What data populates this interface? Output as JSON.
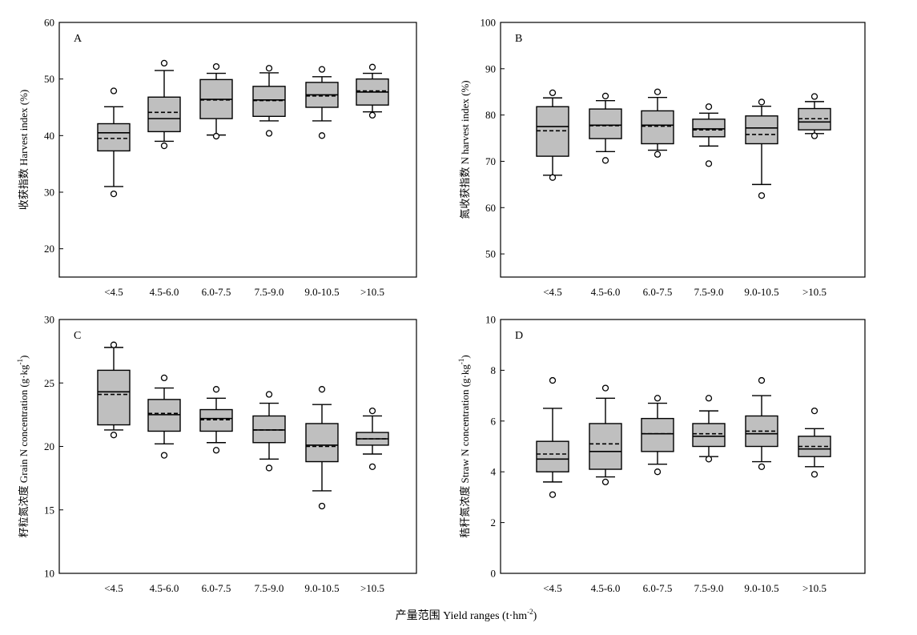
{
  "figure": {
    "x_caption": "产量范围 Yield ranges (t·hm",
    "x_caption_sup": "-2",
    "x_caption_tail": ")"
  },
  "chart_data": [
    {
      "type": "box",
      "panel": "A",
      "ylabel": "收获指数 Harvest index (%)",
      "ylim": [
        15,
        60
      ],
      "yticks": [
        20,
        30,
        40,
        50,
        60
      ],
      "categories": [
        "<4.5",
        "4.5-6.0",
        "6.0-7.5",
        "7.5-9.0",
        "9.0-10.5",
        ">10.5"
      ],
      "boxes": [
        {
          "whisker_low": 31.0,
          "q1": 37.3,
          "median": 40.5,
          "mean": 39.5,
          "q3": 42.1,
          "whisker_high": 45.1,
          "outliers": [
            29.7,
            47.9
          ]
        },
        {
          "whisker_low": 39.0,
          "q1": 40.7,
          "median": 43.0,
          "mean": 44.1,
          "q3": 46.8,
          "whisker_high": 51.5,
          "outliers": [
            38.2,
            52.8
          ]
        },
        {
          "whisker_low": 40.1,
          "q1": 43.0,
          "median": 46.4,
          "mean": 46.3,
          "q3": 49.9,
          "whisker_high": 51.0,
          "outliers": [
            39.9,
            52.2
          ]
        },
        {
          "whisker_low": 42.6,
          "q1": 43.4,
          "median": 46.3,
          "mean": 46.2,
          "q3": 48.7,
          "whisker_high": 51.1,
          "outliers": [
            40.4,
            51.9
          ]
        },
        {
          "whisker_low": 42.6,
          "q1": 45.0,
          "median": 47.2,
          "mean": 47.0,
          "q3": 49.4,
          "whisker_high": 50.4,
          "outliers": [
            40.0,
            51.7
          ]
        },
        {
          "whisker_low": 44.2,
          "q1": 45.4,
          "median": 47.7,
          "mean": 47.9,
          "q3": 50.0,
          "whisker_high": 51.0,
          "outliers": [
            43.6,
            52.1
          ]
        }
      ]
    },
    {
      "type": "box",
      "panel": "B",
      "ylabel": "氮收获指数 N harvest index (%)",
      "ylim": [
        45,
        100
      ],
      "yticks": [
        50,
        60,
        70,
        80,
        90,
        100
      ],
      "categories": [
        "<4.5",
        "4.5-6.0",
        "6.0-7.5",
        "7.5-9.0",
        "9.0-10.5",
        ">10.5"
      ],
      "boxes": [
        {
          "whisker_low": 67.0,
          "q1": 71.1,
          "median": 77.5,
          "mean": 76.6,
          "q3": 81.8,
          "whisker_high": 83.7,
          "outliers": [
            66.5,
            84.8
          ]
        },
        {
          "whisker_low": 72.1,
          "q1": 74.9,
          "median": 77.8,
          "mean": 77.7,
          "q3": 81.3,
          "whisker_high": 83.1,
          "outliers": [
            70.2,
            84.1
          ]
        },
        {
          "whisker_low": 72.4,
          "q1": 73.8,
          "median": 77.8,
          "mean": 77.6,
          "q3": 80.9,
          "whisker_high": 83.8,
          "outliers": [
            71.5,
            85.0
          ]
        },
        {
          "whisker_low": 73.3,
          "q1": 75.3,
          "median": 77.0,
          "mean": 76.8,
          "q3": 79.1,
          "whisker_high": 80.4,
          "outliers": [
            69.5,
            81.8
          ]
        },
        {
          "whisker_low": 65.0,
          "q1": 73.8,
          "median": 77.2,
          "mean": 75.8,
          "q3": 79.8,
          "whisker_high": 81.9,
          "outliers": [
            62.6,
            82.8
          ]
        },
        {
          "whisker_low": 76.0,
          "q1": 76.8,
          "median": 78.5,
          "mean": 79.2,
          "q3": 81.4,
          "whisker_high": 82.9,
          "outliers": [
            75.5,
            84.0
          ]
        }
      ]
    },
    {
      "type": "box",
      "panel": "C",
      "ylabel": "籽粒氮浓度 Grain N concentration (g·kg",
      "ylabel_sup": "-1",
      "ylabel_tail": ")",
      "ylim": [
        10,
        30
      ],
      "yticks": [
        10,
        15,
        20,
        25,
        30
      ],
      "categories": [
        "<4.5",
        "4.5-6.0",
        "6.0-7.5",
        "7.5-9.0",
        "9.0-10.5",
        ">10.5"
      ],
      "boxes": [
        {
          "whisker_low": 21.3,
          "q1": 21.7,
          "median": 24.3,
          "mean": 24.1,
          "q3": 26.0,
          "whisker_high": 27.8,
          "outliers": [
            20.9,
            28.0
          ]
        },
        {
          "whisker_low": 20.2,
          "q1": 21.2,
          "median": 22.5,
          "mean": 22.6,
          "q3": 23.7,
          "whisker_high": 24.6,
          "outliers": [
            19.3,
            25.4
          ]
        },
        {
          "whisker_low": 20.3,
          "q1": 21.2,
          "median": 22.2,
          "mean": 22.1,
          "q3": 22.9,
          "whisker_high": 23.8,
          "outliers": [
            19.7,
            24.5
          ]
        },
        {
          "whisker_low": 19.0,
          "q1": 20.3,
          "median": 21.3,
          "mean": 21.3,
          "q3": 22.4,
          "whisker_high": 23.4,
          "outliers": [
            18.3,
            24.1
          ]
        },
        {
          "whisker_low": 16.5,
          "q1": 18.8,
          "median": 20.1,
          "mean": 20.0,
          "q3": 21.8,
          "whisker_high": 23.3,
          "outliers": [
            15.3,
            24.5
          ]
        },
        {
          "whisker_low": 19.4,
          "q1": 20.1,
          "median": 20.6,
          "mean": 20.6,
          "q3": 21.1,
          "whisker_high": 22.4,
          "outliers": [
            18.4,
            22.8
          ]
        }
      ]
    },
    {
      "type": "box",
      "panel": "D",
      "ylabel": "秸秆氮浓度 Straw N concentration (g·kg",
      "ylabel_sup": "-1",
      "ylabel_tail": ")",
      "ylim": [
        0,
        10
      ],
      "yticks": [
        0,
        2,
        4,
        6,
        8,
        10
      ],
      "categories": [
        "<4.5",
        "4.5-6.0",
        "6.0-7.5",
        "7.5-9.0",
        "9.0-10.5",
        ">10.5"
      ],
      "boxes": [
        {
          "whisker_low": 3.6,
          "q1": 4.0,
          "median": 4.5,
          "mean": 4.7,
          "q3": 5.2,
          "whisker_high": 6.5,
          "outliers": [
            3.1,
            7.6
          ]
        },
        {
          "whisker_low": 3.8,
          "q1": 4.1,
          "median": 4.8,
          "mean": 5.1,
          "q3": 5.9,
          "whisker_high": 6.9,
          "outliers": [
            3.6,
            7.3
          ]
        },
        {
          "whisker_low": 4.3,
          "q1": 4.8,
          "median": 5.5,
          "mean": 5.5,
          "q3": 6.1,
          "whisker_high": 6.7,
          "outliers": [
            4.0,
            6.9
          ]
        },
        {
          "whisker_low": 4.6,
          "q1": 5.0,
          "median": 5.4,
          "mean": 5.5,
          "q3": 5.9,
          "whisker_high": 6.4,
          "outliers": [
            4.5,
            6.9
          ]
        },
        {
          "whisker_low": 4.4,
          "q1": 5.0,
          "median": 5.5,
          "mean": 5.6,
          "q3": 6.2,
          "whisker_high": 7.0,
          "outliers": [
            4.2,
            7.6
          ]
        },
        {
          "whisker_low": 4.2,
          "q1": 4.6,
          "median": 4.9,
          "mean": 5.0,
          "q3": 5.4,
          "whisker_high": 5.7,
          "outliers": [
            3.9,
            6.4
          ]
        }
      ]
    }
  ]
}
